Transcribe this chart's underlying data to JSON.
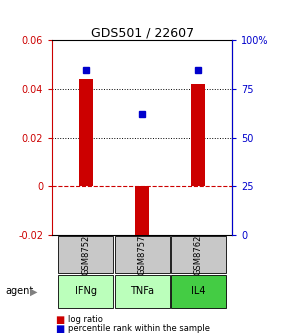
{
  "title": "GDS501 / 22607",
  "samples": [
    "GSM8752",
    "GSM8757",
    "GSM8762"
  ],
  "agents": [
    "IFNg",
    "TNFa",
    "IL4"
  ],
  "log_ratios": [
    0.044,
    -0.023,
    0.042
  ],
  "percentiles": [
    0.85,
    0.62,
    0.85
  ],
  "bar_color": "#cc0000",
  "dot_color": "#0000cc",
  "ylim_left": [
    -0.02,
    0.06
  ],
  "ylim_right": [
    0,
    1.0
  ],
  "yticks_left": [
    -0.02,
    0,
    0.02,
    0.04,
    0.06
  ],
  "yticks_right": [
    0,
    0.25,
    0.5,
    0.75,
    1.0
  ],
  "ytick_labels_right": [
    "0",
    "25",
    "50",
    "75",
    "100%"
  ],
  "grid_values": [
    0.02,
    0.04
  ],
  "zero_line_color": "#cc0000",
  "sample_bg_color": "#c8c8c8",
  "agent_bg_colors": [
    "#bbffbb",
    "#bbffbb",
    "#44cc44"
  ],
  "bar_width": 0.25,
  "legend_bar_label": "log ratio",
  "legend_dot_label": "percentile rank within the sample"
}
